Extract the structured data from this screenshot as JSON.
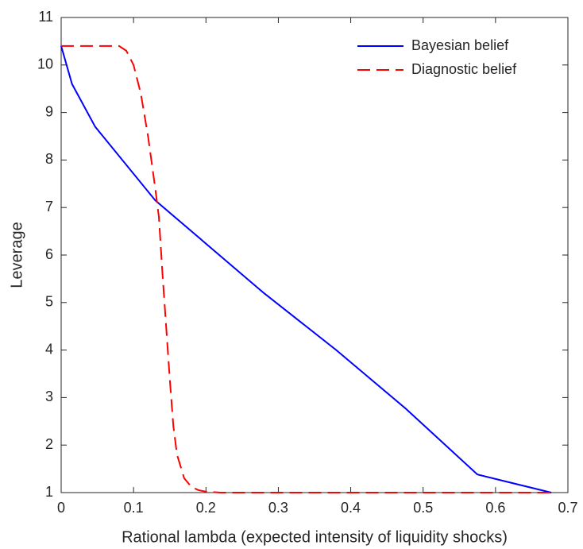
{
  "chart_data": {
    "type": "line",
    "x_label": "Rational lambda (expected intensity of liquidity shocks)",
    "y_label": "Leverage",
    "xlim": [
      0,
      0.7
    ],
    "ylim": [
      1,
      11
    ],
    "xticks": [
      0,
      0.1,
      0.2,
      0.3,
      0.4,
      0.5,
      0.6,
      0.7
    ],
    "yticks": [
      1,
      2,
      3,
      4,
      5,
      6,
      7,
      8,
      9,
      10,
      11
    ],
    "legend": "top-right",
    "series": [
      {
        "name": "Bayesian belief",
        "color": "#0000ff",
        "line_style": "solid",
        "x": [
          0,
          0.015,
          0.047,
          0.13,
          0.28,
          0.38,
          0.475,
          0.575,
          0.677
        ],
        "values": [
          10.4,
          9.6,
          8.7,
          7.15,
          5.2,
          4.0,
          2.78,
          1.38,
          1.0
        ]
      },
      {
        "name": "Diagnostic belief",
        "color": "#ff0000",
        "line_style": "dashed",
        "x": [
          0,
          0.08,
          0.09,
          0.1,
          0.11,
          0.12,
          0.13,
          0.135,
          0.14,
          0.145,
          0.15,
          0.155,
          0.16,
          0.17,
          0.18,
          0.19,
          0.2,
          0.22,
          0.677
        ],
        "values": [
          10.4,
          10.4,
          10.3,
          10.0,
          9.4,
          8.5,
          7.4,
          6.8,
          5.6,
          4.5,
          3.4,
          2.4,
          1.8,
          1.3,
          1.12,
          1.05,
          1.02,
          1.0,
          1.0
        ]
      }
    ]
  }
}
